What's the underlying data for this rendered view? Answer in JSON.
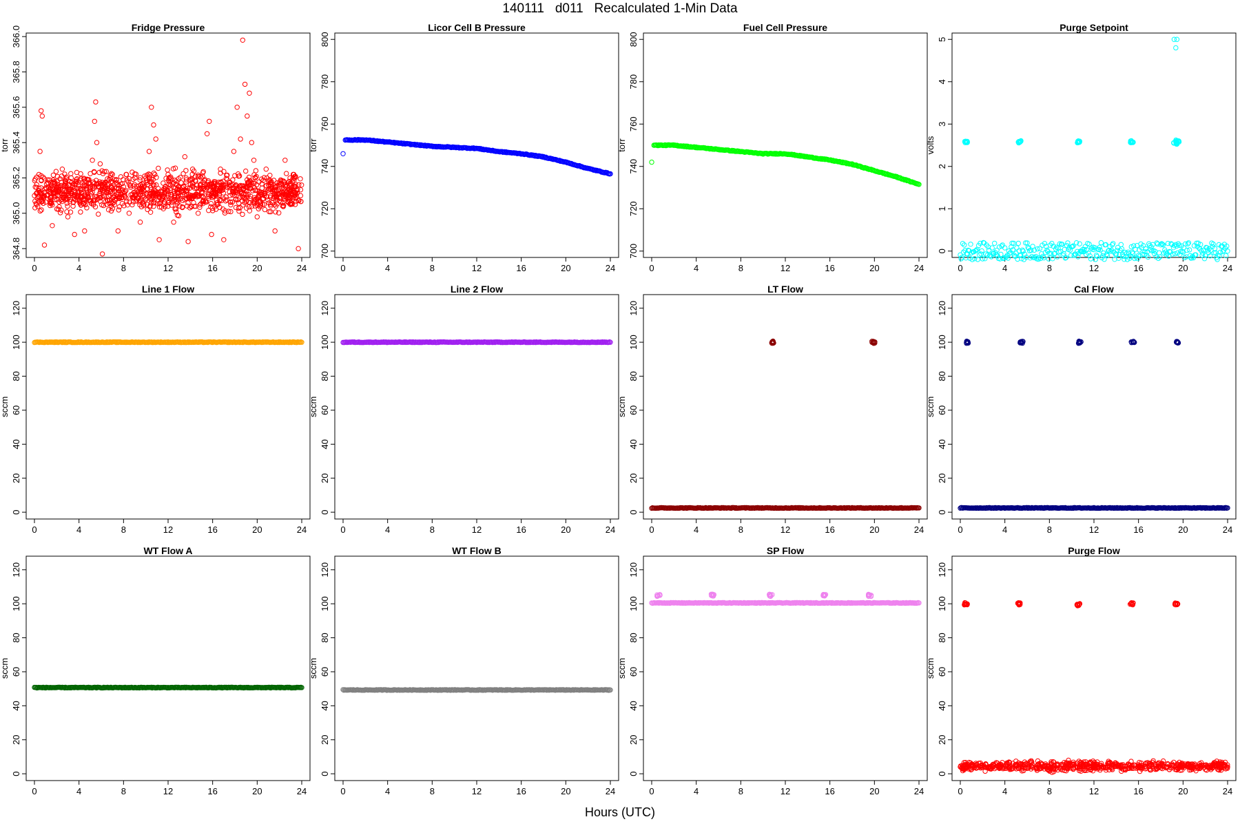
{
  "page": {
    "title": "140111   d011   Recalculated 1-Min Data",
    "xlabel": "Hours (UTC)"
  },
  "chart_data": [
    {
      "type": "scatter",
      "title": "Fridge Pressure",
      "ylabel": "torr",
      "xlim": [
        0,
        24
      ],
      "xticks": [
        "0",
        "4",
        "8",
        "12",
        "16",
        "20",
        "24"
      ],
      "ylim": [
        364.75,
        366.02
      ],
      "yticks": [
        "364.8",
        "365.0",
        "365.2",
        "365.4",
        "365.6",
        "365.8",
        "366.0"
      ],
      "color": "#ff0000",
      "marker": "open-circle",
      "points": [
        [
          0.0,
          365.1
        ],
        [
          0.2,
          365.05
        ],
        [
          0.4,
          365.22
        ],
        [
          0.5,
          365.35
        ],
        [
          0.6,
          365.58
        ],
        [
          0.7,
          365.55
        ],
        [
          0.9,
          364.82
        ],
        [
          1.2,
          365.1
        ],
        [
          1.6,
          364.93
        ],
        [
          2.0,
          365.15
        ],
        [
          2.5,
          365.25
        ],
        [
          3.0,
          364.98
        ],
        [
          3.3,
          365.2
        ],
        [
          3.6,
          364.88
        ],
        [
          4.0,
          365.12
        ],
        [
          4.5,
          364.9
        ],
        [
          5.0,
          365.15
        ],
        [
          5.2,
          365.3
        ],
        [
          5.4,
          365.52
        ],
        [
          5.5,
          365.63
        ],
        [
          5.6,
          365.4
        ],
        [
          5.9,
          365.28
        ],
        [
          6.1,
          364.77
        ],
        [
          6.5,
          365.05
        ],
        [
          7.0,
          365.22
        ],
        [
          7.5,
          364.9
        ],
        [
          8.0,
          365.15
        ],
        [
          8.5,
          365.0
        ],
        [
          9.0,
          365.1
        ],
        [
          9.5,
          364.95
        ],
        [
          10.0,
          365.2
        ],
        [
          10.3,
          365.35
        ],
        [
          10.5,
          365.6
        ],
        [
          10.7,
          365.5
        ],
        [
          10.9,
          365.42
        ],
        [
          11.2,
          364.85
        ],
        [
          11.6,
          365.1
        ],
        [
          12.0,
          365.22
        ],
        [
          12.5,
          364.95
        ],
        [
          13.0,
          365.15
        ],
        [
          13.5,
          365.32
        ],
        [
          13.8,
          364.84
        ],
        [
          14.2,
          365.25
        ],
        [
          14.7,
          365.0
        ],
        [
          15.1,
          365.15
        ],
        [
          15.5,
          365.45
        ],
        [
          15.7,
          365.52
        ],
        [
          15.9,
          364.88
        ],
        [
          16.3,
          365.1
        ],
        [
          16.7,
          365.25
        ],
        [
          17.0,
          364.85
        ],
        [
          17.5,
          365.15
        ],
        [
          17.9,
          365.35
        ],
        [
          18.2,
          365.6
        ],
        [
          18.5,
          365.42
        ],
        [
          18.7,
          365.98
        ],
        [
          18.9,
          365.73
        ],
        [
          19.1,
          365.55
        ],
        [
          19.3,
          365.68
        ],
        [
          19.5,
          365.4
        ],
        [
          19.7,
          365.3
        ],
        [
          20.0,
          364.98
        ],
        [
          20.3,
          365.12
        ],
        [
          20.8,
          365.25
        ],
        [
          21.2,
          365.05
        ],
        [
          21.6,
          364.9
        ],
        [
          22.0,
          365.15
        ],
        [
          22.5,
          365.3
        ],
        [
          23.0,
          365.05
        ],
        [
          23.4,
          365.2
        ],
        [
          23.7,
          364.8
        ],
        [
          23.9,
          365.1
        ]
      ],
      "band": {
        "center": 365.12,
        "half_width": 0.12,
        "count": 1200
      }
    },
    {
      "type": "scatter",
      "title": "Licor Cell B Pressure",
      "ylabel": "torr",
      "xlim": [
        0,
        24
      ],
      "xticks": [
        "0",
        "4",
        "8",
        "12",
        "16",
        "20",
        "24"
      ],
      "ylim": [
        697,
        803
      ],
      "yticks": [
        "700",
        "720",
        "740",
        "760",
        "780",
        "800"
      ],
      "color": "#0000ff",
      "marker": "open-circle",
      "dense": true,
      "points": [
        [
          0.0,
          746
        ],
        [
          0.2,
          752.5
        ],
        [
          2.0,
          752.5
        ],
        [
          4.0,
          751.5
        ],
        [
          6.0,
          750.5
        ],
        [
          8.0,
          749.5
        ],
        [
          10.0,
          749
        ],
        [
          12.0,
          748.5
        ],
        [
          14.0,
          747
        ],
        [
          16.0,
          746
        ],
        [
          18.0,
          744.5
        ],
        [
          20.0,
          742
        ],
        [
          22.0,
          739
        ],
        [
          24.0,
          736.5
        ]
      ]
    },
    {
      "type": "scatter",
      "title": "Fuel Cell Pressure",
      "ylabel": "torr",
      "xlim": [
        0,
        24
      ],
      "xticks": [
        "0",
        "4",
        "8",
        "12",
        "16",
        "20",
        "24"
      ],
      "ylim": [
        697,
        803
      ],
      "yticks": [
        "700",
        "720",
        "740",
        "760",
        "780",
        "800"
      ],
      "color": "#00ff00",
      "marker": "open-circle",
      "dense": true,
      "points": [
        [
          0.0,
          742
        ],
        [
          0.2,
          750
        ],
        [
          2.0,
          750
        ],
        [
          4.0,
          749
        ],
        [
          6.0,
          748
        ],
        [
          8.0,
          747
        ],
        [
          10.0,
          746
        ],
        [
          12.0,
          746
        ],
        [
          14.0,
          744.5
        ],
        [
          16.0,
          743
        ],
        [
          18.0,
          741
        ],
        [
          20.0,
          738
        ],
        [
          22.0,
          735
        ],
        [
          24.0,
          731.5
        ]
      ]
    },
    {
      "type": "scatter",
      "title": "Purge Setpoint",
      "ylabel": "volts",
      "xlim": [
        0,
        24
      ],
      "xticks": [
        "0",
        "4",
        "8",
        "12",
        "16",
        "20",
        "24"
      ],
      "ylim": [
        -0.15,
        5.15
      ],
      "yticks": [
        "0",
        "1",
        "2",
        "3",
        "4",
        "5"
      ],
      "color": "#00ffff",
      "marker": "open-circle",
      "dense": true,
      "points": [
        [
          0.0,
          0
        ],
        [
          24.0,
          0
        ]
      ],
      "clusters": [
        [
          0.5,
          2.58
        ],
        [
          5.3,
          2.58
        ],
        [
          10.6,
          2.58
        ],
        [
          15.4,
          2.58
        ],
        [
          19.3,
          2.55
        ],
        [
          19.5,
          2.6
        ]
      ],
      "extra_points": [
        [
          19.2,
          5.0
        ],
        [
          19.45,
          5.0
        ],
        [
          19.35,
          4.8
        ]
      ]
    },
    {
      "type": "scatter",
      "title": "Line 1 Flow",
      "ylabel": "sccm",
      "xlim": [
        0,
        24
      ],
      "xticks": [
        "0",
        "4",
        "8",
        "12",
        "16",
        "20",
        "24"
      ],
      "ylim": [
        -4,
        128
      ],
      "yticks": [
        "0",
        "20",
        "40",
        "60",
        "80",
        "100",
        "120"
      ],
      "color": "#ffa500",
      "marker": "open-circle",
      "dense": true,
      "points": [
        [
          0.0,
          100
        ],
        [
          24.0,
          100
        ]
      ]
    },
    {
      "type": "scatter",
      "title": "Line 2 Flow",
      "ylabel": "sccm",
      "xlim": [
        0,
        24
      ],
      "xticks": [
        "0",
        "4",
        "8",
        "12",
        "16",
        "20",
        "24"
      ],
      "ylim": [
        -4,
        128
      ],
      "yticks": [
        "0",
        "20",
        "40",
        "60",
        "80",
        "100",
        "120"
      ],
      "color": "#a020f0",
      "marker": "open-circle",
      "dense": true,
      "points": [
        [
          0.0,
          100
        ],
        [
          24.0,
          100
        ]
      ]
    },
    {
      "type": "scatter",
      "title": "LT Flow",
      "ylabel": "sccm",
      "xlim": [
        0,
        24
      ],
      "xticks": [
        "0",
        "4",
        "8",
        "12",
        "16",
        "20",
        "24"
      ],
      "ylim": [
        -4,
        128
      ],
      "yticks": [
        "0",
        "20",
        "40",
        "60",
        "80",
        "100",
        "120"
      ],
      "color": "#8b0000",
      "marker": "open-circle",
      "dense": true,
      "points": [
        [
          0.0,
          2.5
        ],
        [
          24.0,
          2.5
        ]
      ],
      "clusters": [
        [
          10.8,
          100
        ],
        [
          19.9,
          100
        ]
      ]
    },
    {
      "type": "scatter",
      "title": "Cal Flow",
      "ylabel": "sccm",
      "xlim": [
        0,
        24
      ],
      "xticks": [
        "0",
        "4",
        "8",
        "12",
        "16",
        "20",
        "24"
      ],
      "ylim": [
        -4,
        128
      ],
      "yticks": [
        "0",
        "20",
        "40",
        "60",
        "80",
        "100",
        "120"
      ],
      "color": "#000080",
      "marker": "open-circle",
      "dense": true,
      "points": [
        [
          0.0,
          2.5
        ],
        [
          24.0,
          2.5
        ]
      ],
      "clusters": [
        [
          0.6,
          100
        ],
        [
          5.5,
          100
        ],
        [
          10.7,
          100
        ],
        [
          15.5,
          100
        ],
        [
          19.5,
          100
        ]
      ]
    },
    {
      "type": "scatter",
      "title": "WT Flow A",
      "ylabel": "sccm",
      "xlim": [
        0,
        24
      ],
      "xticks": [
        "0",
        "4",
        "8",
        "12",
        "16",
        "20",
        "24"
      ],
      "ylim": [
        -4,
        128
      ],
      "yticks": [
        "0",
        "20",
        "40",
        "60",
        "80",
        "100",
        "120"
      ],
      "color": "#006400",
      "marker": "open-circle",
      "dense": true,
      "points": [
        [
          0.0,
          50.7
        ],
        [
          24.0,
          50.7
        ]
      ]
    },
    {
      "type": "scatter",
      "title": "WT Flow B",
      "ylabel": "sccm",
      "xlim": [
        0,
        24
      ],
      "xticks": [
        "0",
        "4",
        "8",
        "12",
        "16",
        "20",
        "24"
      ],
      "ylim": [
        -4,
        128
      ],
      "yticks": [
        "0",
        "20",
        "40",
        "60",
        "80",
        "100",
        "120"
      ],
      "color": "#808080",
      "marker": "open-circle",
      "dense": true,
      "points": [
        [
          0.0,
          49.3
        ],
        [
          24.0,
          49.3
        ]
      ]
    },
    {
      "type": "scatter",
      "title": "SP Flow",
      "ylabel": "sccm",
      "xlim": [
        0,
        24
      ],
      "xticks": [
        "0",
        "4",
        "8",
        "12",
        "16",
        "20",
        "24"
      ],
      "ylim": [
        -4,
        128
      ],
      "yticks": [
        "0",
        "20",
        "40",
        "60",
        "80",
        "100",
        "120"
      ],
      "color": "#ee82ee",
      "marker": "open-circle",
      "dense": true,
      "points": [
        [
          0.0,
          100.5
        ],
        [
          24.0,
          100.5
        ]
      ],
      "clusters": [
        [
          0.6,
          105
        ],
        [
          5.5,
          105
        ],
        [
          10.7,
          105
        ],
        [
          15.5,
          105
        ],
        [
          19.6,
          105
        ]
      ]
    },
    {
      "type": "scatter",
      "title": "Purge Flow",
      "ylabel": "sccm",
      "xlim": [
        0,
        24
      ],
      "xticks": [
        "0",
        "4",
        "8",
        "12",
        "16",
        "20",
        "24"
      ],
      "ylim": [
        -4,
        128
      ],
      "yticks": [
        "0",
        "20",
        "40",
        "60",
        "80",
        "100",
        "120"
      ],
      "color": "#ff0000",
      "marker": "open-circle",
      "points": [
        [
          0.0,
          4
        ],
        [
          24.0,
          4
        ]
      ],
      "band": {
        "center": 4.5,
        "half_width": 3,
        "count": 700
      },
      "clusters": [
        [
          0.5,
          100
        ],
        [
          5.3,
          100
        ],
        [
          10.6,
          99.5
        ],
        [
          15.4,
          100
        ],
        [
          19.4,
          100
        ]
      ]
    }
  ]
}
